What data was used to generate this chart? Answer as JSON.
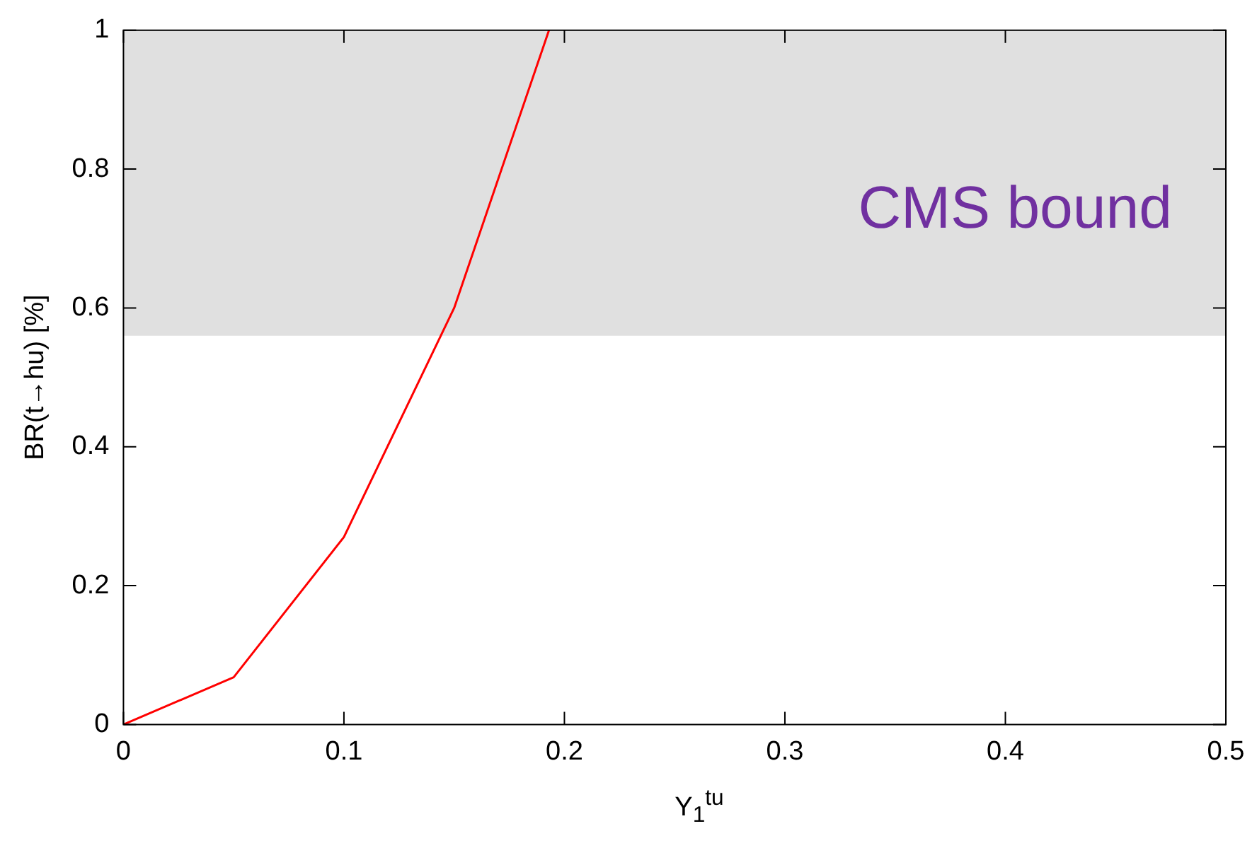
{
  "chart_data": {
    "type": "line",
    "xlabel": "Y$_{1}$$^{tu}$",
    "ylabel": "BR(t→hu) [%]",
    "x": [
      0,
      0.05,
      0.1,
      0.15,
      0.193
    ],
    "series": [
      {
        "color": "#ff0000",
        "values": [
          0,
          0.068,
          0.27,
          0.6,
          1.0
        ]
      }
    ],
    "xlim": [
      0,
      0.5
    ],
    "xticks": [
      0,
      0.1,
      0.2,
      0.3,
      0.4,
      0.5
    ],
    "ylim": [
      0,
      1
    ],
    "yticks": [
      0,
      0.2,
      0.4,
      0.6,
      0.8,
      1
    ],
    "bands": [
      {
        "axis": "y",
        "from": 0.56,
        "to": 1,
        "label": "CMS bound",
        "color": "#e0e0e0"
      }
    ],
    "grid": false,
    "legend": false,
    "marker": "none",
    "line_style": "solid"
  }
}
